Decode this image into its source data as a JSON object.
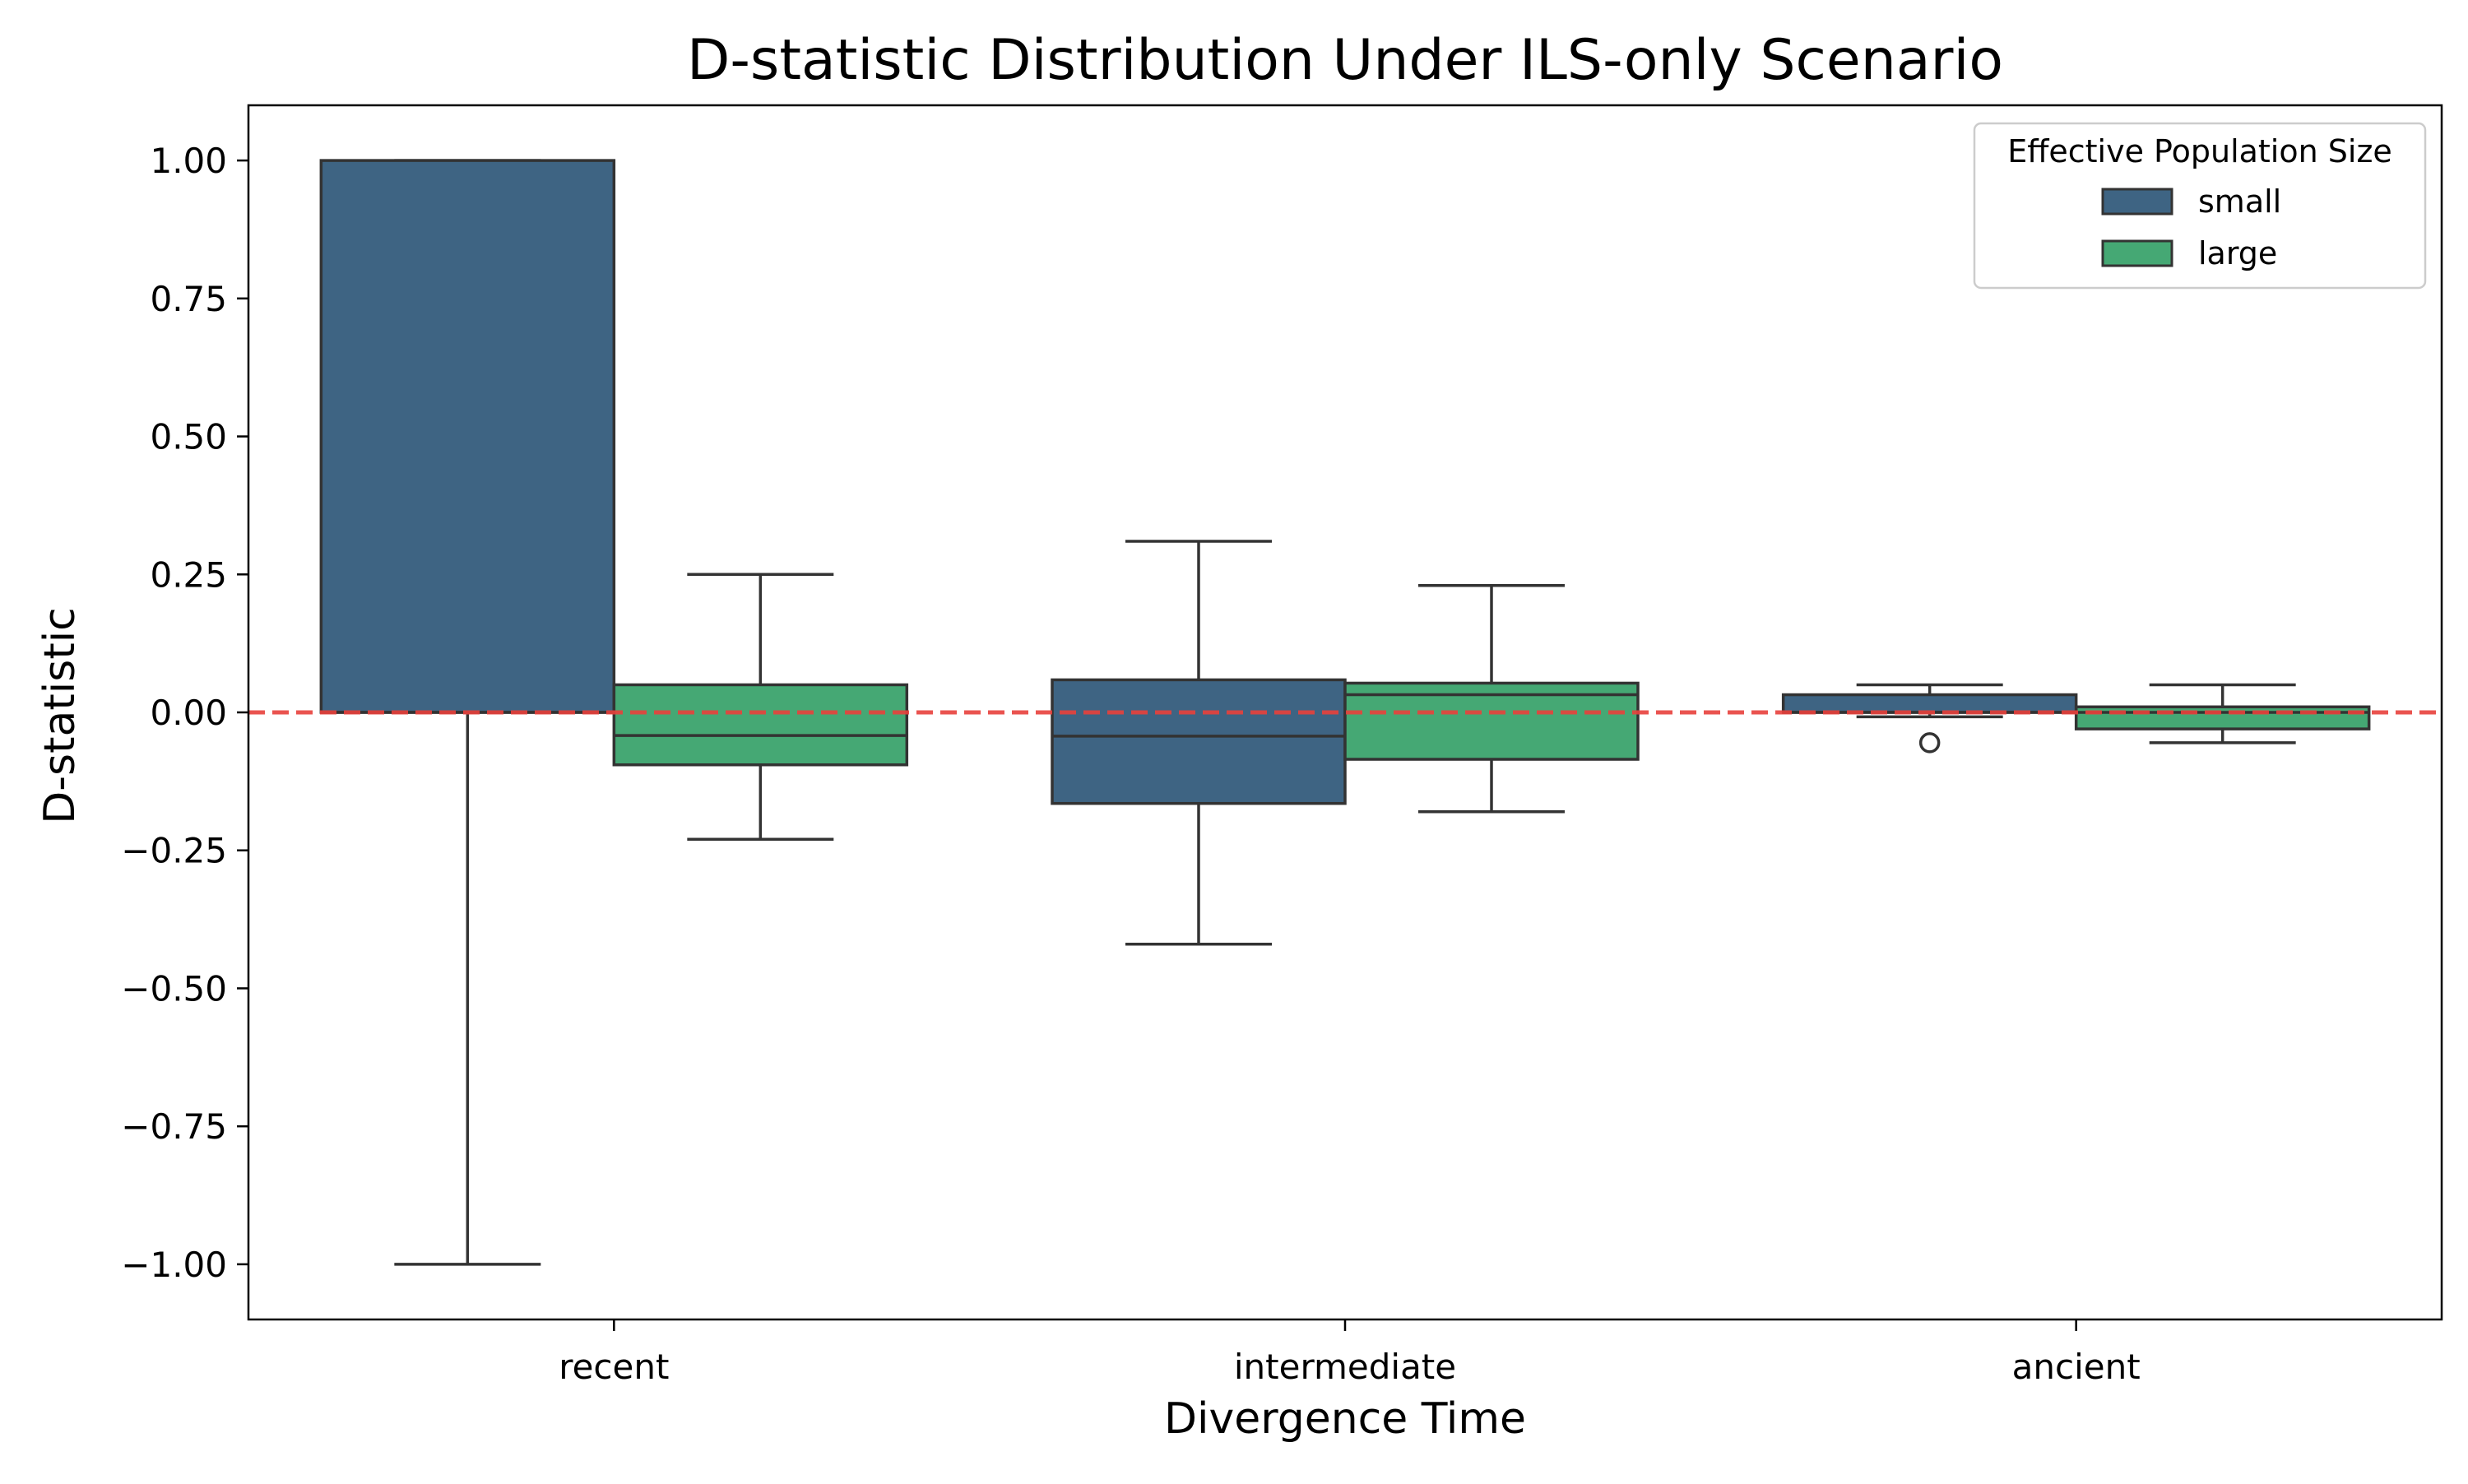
{
  "chart_data": {
    "type": "box",
    "title": "D-statistic Distribution Under ILS-only Scenario",
    "xlabel": "Divergence Time",
    "ylabel": "D-statistic",
    "categories": [
      "recent",
      "intermediate",
      "ancient"
    ],
    "ylim": [
      -1.1,
      1.1
    ],
    "yticks": [
      1.0,
      0.75,
      0.5,
      0.25,
      0.0,
      -0.25,
      -0.5,
      -0.75,
      -1.0
    ],
    "ytick_labels": [
      "1.00",
      "0.75",
      "0.50",
      "0.25",
      "0.00",
      "−0.25",
      "−0.50",
      "−0.75",
      "−1.00"
    ],
    "reference_line": {
      "y": 0.0,
      "style": "dashed",
      "color": "#e8413c"
    },
    "grid": false,
    "legend": {
      "title": "Effective Population Size",
      "position": "top-right"
    },
    "series": [
      {
        "name": "small",
        "color": "#3e6483",
        "boxes": [
          {
            "category": "recent",
            "whislo": -1.0,
            "q1": 0.0,
            "median": 0.0,
            "q3": 1.0,
            "whishi": 1.0,
            "fliers": []
          },
          {
            "category": "intermediate",
            "whislo": -0.42,
            "q1": -0.165,
            "median": -0.043,
            "q3": 0.059,
            "whishi": 0.31,
            "fliers": []
          },
          {
            "category": "ancient",
            "whislo": -0.008,
            "q1": 0.0,
            "median": 0.0,
            "q3": 0.032,
            "whishi": 0.05,
            "fliers": [
              -0.055
            ]
          }
        ]
      },
      {
        "name": "large",
        "color": "#45a874",
        "boxes": [
          {
            "category": "recent",
            "whislo": -0.23,
            "q1": -0.095,
            "median": -0.042,
            "q3": 0.05,
            "whishi": 0.25,
            "fliers": []
          },
          {
            "category": "intermediate",
            "whislo": -0.18,
            "q1": -0.085,
            "median": 0.032,
            "q3": 0.053,
            "whishi": 0.23,
            "fliers": []
          },
          {
            "category": "ancient",
            "whislo": -0.055,
            "q1": -0.03,
            "median": 0.0,
            "q3": 0.01,
            "whishi": 0.05,
            "fliers": []
          }
        ]
      }
    ]
  }
}
